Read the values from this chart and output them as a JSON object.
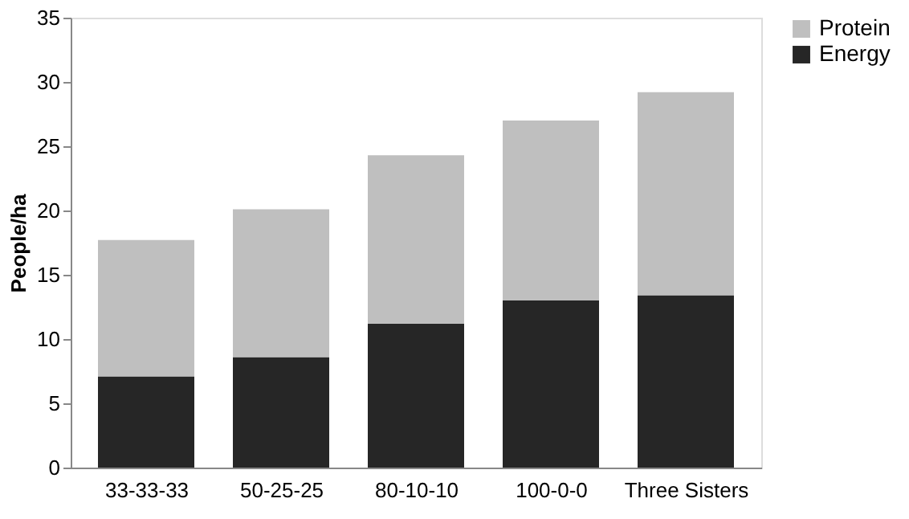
{
  "chart_data": {
    "type": "bar",
    "stacked": true,
    "ylabel": "People/ha",
    "categories": [
      "33-33-33",
      "50-25-25",
      "80-10-10",
      "100-0-0",
      "Three Sisters"
    ],
    "series": [
      {
        "name": "Energy",
        "color": "#262626",
        "values": [
          7.1,
          8.6,
          11.2,
          13.0,
          13.4
        ]
      },
      {
        "name": "Protein",
        "color": "#bfbfbf",
        "values": [
          10.6,
          11.5,
          13.1,
          14.0,
          15.8
        ]
      }
    ],
    "ylim": [
      0,
      35
    ],
    "yticks": [
      0,
      5,
      10,
      15,
      20,
      25,
      30,
      35
    ],
    "grid": false,
    "legend": "right"
  }
}
